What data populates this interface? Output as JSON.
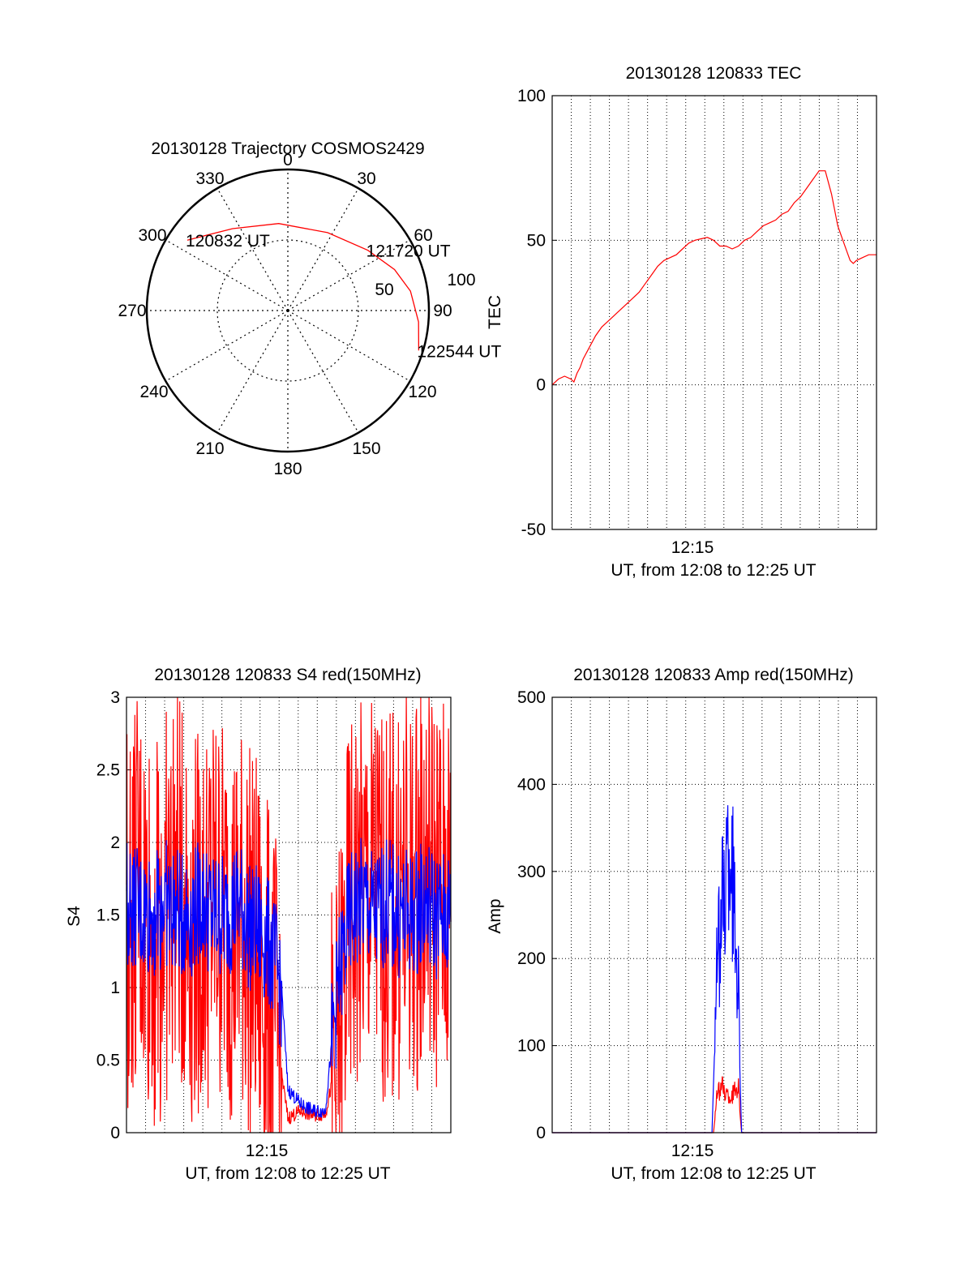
{
  "chart_data": [
    {
      "type": "polar",
      "title": "20130128 Trajectory COSMOS2429",
      "angular_ticks": [
        "0",
        "30",
        "60",
        "90",
        "120",
        "150",
        "180",
        "210",
        "240",
        "270",
        "300",
        "330"
      ],
      "radial_ticks": [
        "50",
        "100"
      ],
      "rlim": [
        0,
        100
      ],
      "grid": true,
      "series": [
        {
          "color": "#ff0000",
          "points": [
            {
              "az": 305,
              "r": 87
            },
            {
              "az": 326,
              "r": 70
            },
            {
              "az": 354,
              "r": 62
            },
            {
              "az": 27,
              "r": 62
            },
            {
              "az": 53,
              "r": 71
            },
            {
              "az": 69,
              "r": 81
            },
            {
              "az": 81,
              "r": 88
            },
            {
              "az": 95,
              "r": 93
            },
            {
              "az": 107,
              "r": 97
            }
          ]
        }
      ],
      "annotations": [
        {
          "text": "120832 UT",
          "az": 305,
          "r": 87
        },
        {
          "text": "121720 UT",
          "az": 53,
          "r": 71
        },
        {
          "text": "122544 UT",
          "az": 107,
          "r": 97
        }
      ]
    },
    {
      "type": "line",
      "title": "20130128 120833 TEC",
      "xlabel": "UT, from 12:08 to 12:25 UT",
      "ylabel": "TEC",
      "xlim": [
        0,
        1045
      ],
      "ylim": [
        -50,
        100
      ],
      "yticks": [
        "-50",
        "0",
        "50",
        "100"
      ],
      "xticks": [
        {
          "t": 452,
          "label": "12:15"
        }
      ],
      "grid": true,
      "series": [
        {
          "color": "#ff0000",
          "x": [
            0,
            20,
            40,
            60,
            70,
            80,
            90,
            100,
            120,
            140,
            160,
            180,
            200,
            220,
            240,
            260,
            280,
            300,
            320,
            340,
            360,
            380,
            400,
            420,
            440,
            460,
            480,
            500,
            520,
            540,
            560,
            580,
            600,
            620,
            640,
            660,
            680,
            700,
            720,
            740,
            760,
            780,
            800,
            820,
            840,
            860,
            880,
            900,
            920,
            940,
            950,
            960,
            970,
            980,
            1000,
            1020,
            1045
          ],
          "y": [
            0,
            2,
            3,
            2,
            1,
            4,
            6,
            9,
            13,
            17,
            20,
            22,
            24,
            26,
            28,
            30,
            32,
            35,
            38,
            41,
            43,
            44,
            45,
            47,
            49,
            50,
            50.5,
            51,
            50,
            48,
            48,
            47,
            48,
            50,
            51,
            53,
            55,
            56,
            57,
            59,
            60,
            63,
            65,
            68,
            71,
            74,
            74,
            66,
            55,
            49,
            46,
            43,
            42,
            43,
            44,
            45,
            45
          ]
        }
      ]
    },
    {
      "type": "line",
      "title": "20130128 120833 S4 red(150MHz)",
      "xlabel": "UT, from 12:08 to 12:25 UT",
      "ylabel": "S4",
      "xlim": [
        0,
        1045
      ],
      "ylim": [
        0,
        3
      ],
      "yticks": [
        "0",
        "0.5",
        "1",
        "1.5",
        "2",
        "2.5",
        "3"
      ],
      "xticks": [
        {
          "t": 452,
          "label": "12:15"
        }
      ],
      "grid": true,
      "series": [
        {
          "color": "#ff0000",
          "x": [
            0,
            40,
            80,
            120,
            160,
            200,
            240,
            280,
            320,
            360,
            380,
            400,
            420,
            480,
            520,
            560,
            600,
            640,
            680,
            720,
            760,
            800,
            840,
            880,
            920,
            960,
            1000,
            1045
          ],
          "y": [
            1.5,
            1.6,
            1.4,
            1.5,
            1.7,
            1.5,
            1.4,
            1.6,
            1.5,
            1.4,
            1.5,
            1.3,
            1.2,
            0.7,
            0.1,
            0.15,
            0.12,
            0.13,
            0.5,
            1.5,
            1.6,
            1.7,
            1.5,
            1.6,
            1.6,
            1.8,
            1.7,
            1.6
          ]
        },
        {
          "color": "#0000ff",
          "x": [
            0,
            40,
            80,
            120,
            160,
            200,
            240,
            280,
            320,
            360,
            380,
            400,
            420,
            460,
            500,
            520,
            560,
            600,
            640,
            680,
            720,
            760,
            800,
            840,
            880,
            920,
            960,
            1000,
            1045
          ],
          "y": [
            1.6,
            1.5,
            1.5,
            1.6,
            1.5,
            1.5,
            1.6,
            1.5,
            1.5,
            1.6,
            1.5,
            1.4,
            1.4,
            1.3,
            1.0,
            0.3,
            0.2,
            0.15,
            0.15,
            1.0,
            1.5,
            1.6,
            1.5,
            1.6,
            1.5,
            1.5,
            1.6,
            1.5,
            1.5
          ]
        }
      ]
    },
    {
      "type": "line",
      "title": "20130128 120833 Amp red(150MHz)",
      "xlabel": "UT, from 12:08 to 12:25 UT",
      "ylabel": "Amp",
      "xlim": [
        0,
        1045
      ],
      "ylim": [
        0,
        500
      ],
      "yticks": [
        "0",
        "100",
        "200",
        "300",
        "400",
        "500"
      ],
      "xticks": [
        {
          "t": 452,
          "label": "12:15"
        }
      ],
      "grid": true,
      "series": [
        {
          "color": "#ff0000",
          "x": [
            0,
            500,
            520,
            530,
            545,
            560,
            575,
            590,
            600,
            610,
            1045
          ],
          "y": [
            0,
            0,
            0,
            40,
            55,
            45,
            40,
            50,
            55,
            0,
            0
          ]
        },
        {
          "color": "#0000ff",
          "x": [
            0,
            500,
            515,
            530,
            545,
            560,
            575,
            590,
            600,
            610,
            1045
          ],
          "y": [
            0,
            0,
            0,
            180,
            250,
            300,
            340,
            230,
            180,
            0,
            0
          ]
        }
      ]
    }
  ]
}
